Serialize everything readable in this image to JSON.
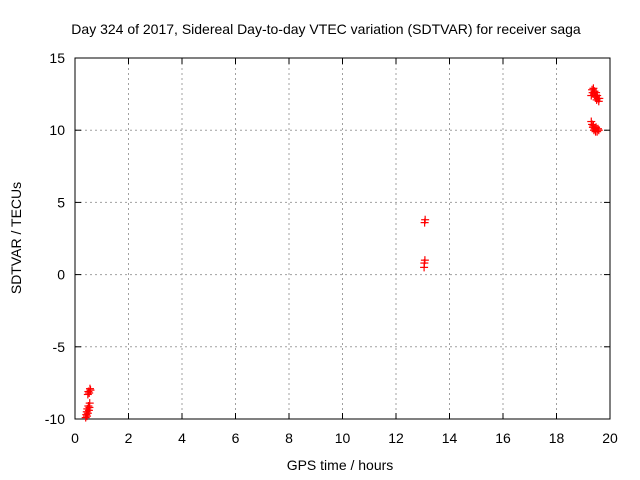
{
  "chart_data": {
    "type": "scatter",
    "title": "Day 324 of 2017, Sidereal Day-to-day VTEC variation (SDTVAR) for receiver saga",
    "xlabel": "GPS time / hours",
    "ylabel": "SDTVAR / TECUs",
    "xlim": [
      0,
      20
    ],
    "ylim": [
      -10,
      15
    ],
    "xticks": [
      0,
      2,
      4,
      6,
      8,
      10,
      12,
      14,
      16,
      18,
      20
    ],
    "yticks": [
      -10,
      -5,
      0,
      5,
      10,
      15
    ],
    "xtick_labels": [
      "0",
      "2",
      "4",
      "6",
      "8",
      "10",
      "12",
      "14",
      "16",
      "18",
      "20"
    ],
    "ytick_labels": [
      "-10",
      "-5",
      "0",
      "5",
      "10",
      "15"
    ],
    "grid": true,
    "marker": "plus",
    "color": "#ff0000",
    "series": [
      {
        "points": [
          [
            0.4,
            -9.9
          ],
          [
            0.42,
            -9.7
          ],
          [
            0.44,
            -9.5
          ],
          [
            0.45,
            -9.8
          ],
          [
            0.46,
            -9.3
          ],
          [
            0.48,
            -9.6
          ],
          [
            0.5,
            -9.1
          ],
          [
            0.52,
            -9.4
          ],
          [
            0.54,
            -9.2
          ],
          [
            0.55,
            -8.9
          ],
          [
            0.48,
            -8.3
          ],
          [
            0.5,
            -8.1
          ],
          [
            0.53,
            -8.2
          ],
          [
            0.56,
            -7.9
          ],
          [
            0.58,
            -8.0
          ],
          [
            13.05,
            0.5
          ],
          [
            13.06,
            0.8
          ],
          [
            13.08,
            1.0
          ],
          [
            13.07,
            3.6
          ],
          [
            13.09,
            3.8
          ],
          [
            19.3,
            12.4
          ],
          [
            19.33,
            12.8
          ],
          [
            19.35,
            12.6
          ],
          [
            19.38,
            12.9
          ],
          [
            19.4,
            12.5
          ],
          [
            19.42,
            12.7
          ],
          [
            19.45,
            12.3
          ],
          [
            19.48,
            12.6
          ],
          [
            19.5,
            12.1
          ],
          [
            19.52,
            12.4
          ],
          [
            19.55,
            12.2
          ],
          [
            19.58,
            12.0
          ],
          [
            19.6,
            12.2
          ],
          [
            19.3,
            10.6
          ],
          [
            19.33,
            10.4
          ],
          [
            19.36,
            10.2
          ],
          [
            19.38,
            10.3
          ],
          [
            19.4,
            10.0
          ],
          [
            19.43,
            10.1
          ],
          [
            19.46,
            9.9
          ],
          [
            19.48,
            10.2
          ],
          [
            19.52,
            9.9
          ],
          [
            19.55,
            10.1
          ],
          [
            19.58,
            10.0
          ]
        ]
      }
    ]
  }
}
